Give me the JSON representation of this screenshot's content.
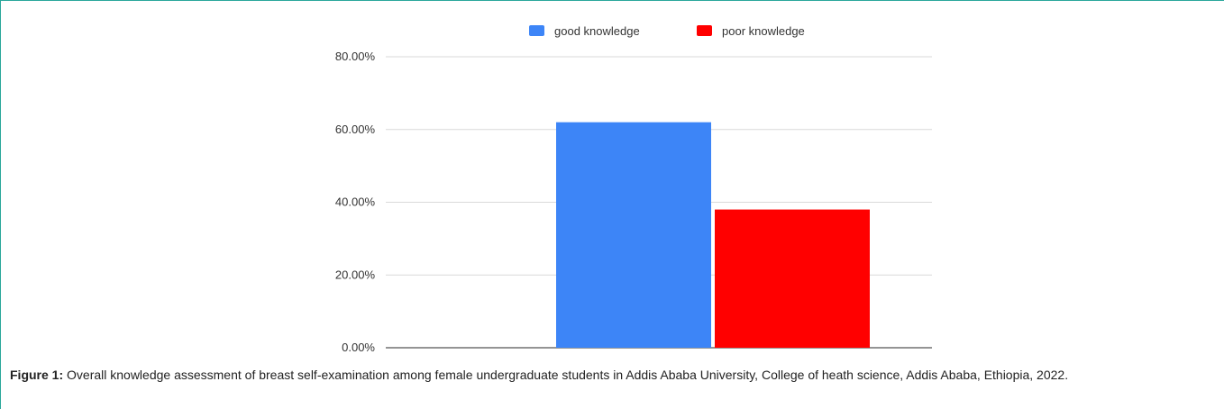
{
  "chart_data": {
    "type": "bar",
    "categories": [
      ""
    ],
    "series": [
      {
        "name": "good knowledge",
        "values": [
          62.0
        ],
        "color": "#3d85f7"
      },
      {
        "name": "poor knowledge",
        "values": [
          38.0
        ],
        "color": "#ff0000"
      }
    ],
    "title": "",
    "xlabel": "",
    "ylabel": "",
    "ylim": [
      0,
      80
    ],
    "yticks": [
      0,
      20,
      40,
      60,
      80
    ],
    "ytick_labels": [
      "0.00%",
      "20.00%",
      "40.00%",
      "60.00%",
      "80.00%"
    ],
    "grid": true,
    "legend": "top"
  },
  "caption": {
    "label": "Figure 1:",
    "text": " Overall knowledge assessment of breast self-examination among female undergraduate students in Addis Ababa University, College of heath science, Addis Ababa, Ethiopia, 2022."
  }
}
